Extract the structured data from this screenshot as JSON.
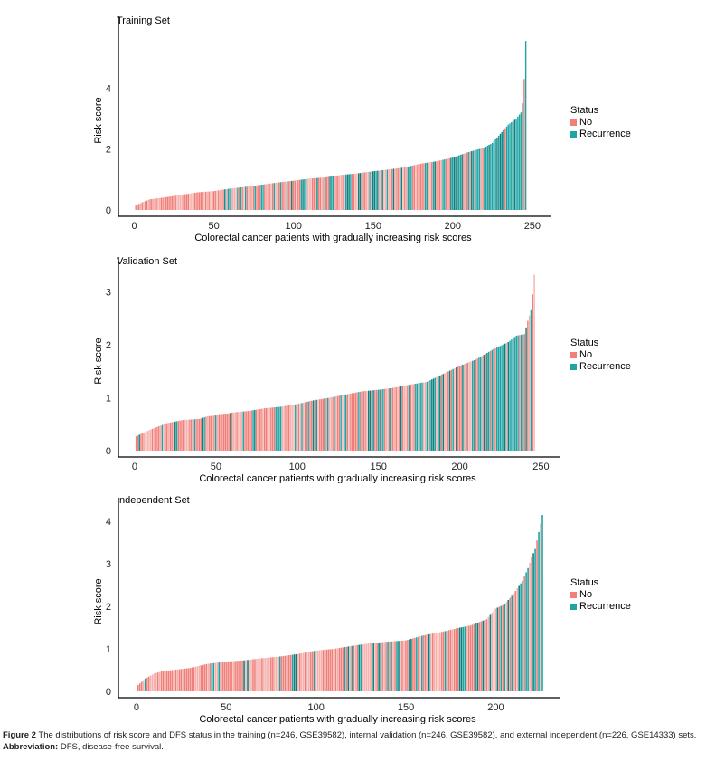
{
  "colors": {
    "no": "#f07f7a",
    "recurrence": "#1fa3a3",
    "no_light": "#f4b1ad",
    "recurrence_dark": "#0e7f7f"
  },
  "legend": {
    "title": "Status",
    "items": [
      "No",
      "Recurrence"
    ]
  },
  "caption": {
    "figure_label": "Figure 2",
    "text": " The distributions of risk score and DFS status in the training (n=246, GSE39582), internal validation (n=246, GSE39582), and external independent (n=226, GSE14333) sets.",
    "abbrev_label": "Abbreviation:",
    "abbrev_text": " DFS, disease-free survival."
  },
  "chart_data": [
    {
      "type": "bar",
      "title": "Training Set",
      "xlabel": "Colorectal cancer patients with gradually increasing risk scores",
      "ylabel": "Risk score",
      "n": 246,
      "xticks": [
        0,
        50,
        100,
        150,
        200,
        250
      ],
      "yticks": [
        0,
        2,
        4
      ],
      "xlim": [
        -10,
        262
      ],
      "ylim": [
        0,
        6.0
      ],
      "anchors": [
        [
          1,
          0.15
        ],
        [
          5,
          0.25
        ],
        [
          10,
          0.35
        ],
        [
          20,
          0.42
        ],
        [
          30,
          0.5
        ],
        [
          40,
          0.58
        ],
        [
          50,
          0.62
        ],
        [
          60,
          0.7
        ],
        [
          70,
          0.76
        ],
        [
          80,
          0.83
        ],
        [
          90,
          0.9
        ],
        [
          100,
          0.96
        ],
        [
          110,
          1.03
        ],
        [
          120,
          1.07
        ],
        [
          130,
          1.15
        ],
        [
          140,
          1.2
        ],
        [
          150,
          1.27
        ],
        [
          160,
          1.33
        ],
        [
          170,
          1.4
        ],
        [
          180,
          1.52
        ],
        [
          190,
          1.6
        ],
        [
          200,
          1.72
        ],
        [
          210,
          1.9
        ],
        [
          220,
          2.05
        ],
        [
          225,
          2.2
        ],
        [
          230,
          2.5
        ],
        [
          235,
          2.8
        ],
        [
          240,
          3.0
        ],
        [
          243,
          3.2
        ],
        [
          244,
          3.5
        ],
        [
          245,
          4.3
        ],
        [
          246,
          5.55
        ]
      ],
      "recurrence_rate_by_decile": [
        0.1,
        0.15,
        0.2,
        0.25,
        0.3,
        0.3,
        0.35,
        0.35,
        0.45,
        0.85
      ]
    },
    {
      "type": "bar",
      "title": "Validation Set",
      "xlabel": "Colorectal cancer patients with gradually increasing risk scores",
      "ylabel": "Risk score",
      "n": 246,
      "xticks": [
        0,
        50,
        100,
        150,
        200,
        250
      ],
      "yticks": [
        0,
        1,
        2,
        3
      ],
      "xlim": [
        -10,
        262
      ],
      "ylim": [
        0,
        3.45
      ],
      "anchors": [
        [
          1,
          0.27
        ],
        [
          5,
          0.33
        ],
        [
          10,
          0.4
        ],
        [
          20,
          0.52
        ],
        [
          30,
          0.58
        ],
        [
          40,
          0.6
        ],
        [
          45,
          0.65
        ],
        [
          55,
          0.68
        ],
        [
          60,
          0.72
        ],
        [
          70,
          0.75
        ],
        [
          80,
          0.8
        ],
        [
          90,
          0.83
        ],
        [
          100,
          0.88
        ],
        [
          110,
          0.95
        ],
        [
          120,
          1.0
        ],
        [
          130,
          1.06
        ],
        [
          140,
          1.12
        ],
        [
          150,
          1.15
        ],
        [
          160,
          1.19
        ],
        [
          170,
          1.25
        ],
        [
          180,
          1.3
        ],
        [
          190,
          1.45
        ],
        [
          200,
          1.6
        ],
        [
          210,
          1.72
        ],
        [
          220,
          1.9
        ],
        [
          230,
          2.05
        ],
        [
          235,
          2.17
        ],
        [
          240,
          2.2
        ],
        [
          242,
          2.45
        ],
        [
          244,
          2.65
        ],
        [
          245,
          2.95
        ],
        [
          246,
          3.32
        ]
      ],
      "recurrence_rate_by_decile": [
        0.3,
        0.25,
        0.2,
        0.25,
        0.3,
        0.35,
        0.35,
        0.4,
        0.45,
        0.6
      ]
    },
    {
      "type": "bar",
      "title": "Independent Set",
      "xlabel": "Colorectal cancer patients with gradually increasing risk scores",
      "ylabel": "Risk score",
      "n": 226,
      "xticks": [
        0,
        50,
        100,
        150,
        200
      ],
      "yticks": [
        0,
        1,
        2,
        3,
        4
      ],
      "xlim": [
        -10,
        236
      ],
      "ylim": [
        0,
        4.3
      ],
      "anchors": [
        [
          1,
          0.15
        ],
        [
          5,
          0.3
        ],
        [
          10,
          0.42
        ],
        [
          15,
          0.48
        ],
        [
          20,
          0.5
        ],
        [
          30,
          0.55
        ],
        [
          40,
          0.65
        ],
        [
          50,
          0.7
        ],
        [
          60,
          0.73
        ],
        [
          70,
          0.78
        ],
        [
          80,
          0.82
        ],
        [
          90,
          0.88
        ],
        [
          100,
          0.96
        ],
        [
          110,
          1.0
        ],
        [
          120,
          1.07
        ],
        [
          130,
          1.13
        ],
        [
          140,
          1.17
        ],
        [
          150,
          1.2
        ],
        [
          160,
          1.32
        ],
        [
          170,
          1.4
        ],
        [
          180,
          1.5
        ],
        [
          186,
          1.55
        ],
        [
          195,
          1.7
        ],
        [
          200,
          1.95
        ],
        [
          205,
          2.05
        ],
        [
          210,
          2.3
        ],
        [
          215,
          2.6
        ],
        [
          218,
          2.9
        ],
        [
          220,
          3.15
        ],
        [
          222,
          3.35
        ],
        [
          224,
          3.75
        ],
        [
          225,
          3.95
        ],
        [
          226,
          4.15
        ]
      ],
      "recurrence_rate_by_decile": [
        0.1,
        0.1,
        0.15,
        0.2,
        0.2,
        0.25,
        0.3,
        0.3,
        0.45,
        0.5
      ]
    }
  ]
}
